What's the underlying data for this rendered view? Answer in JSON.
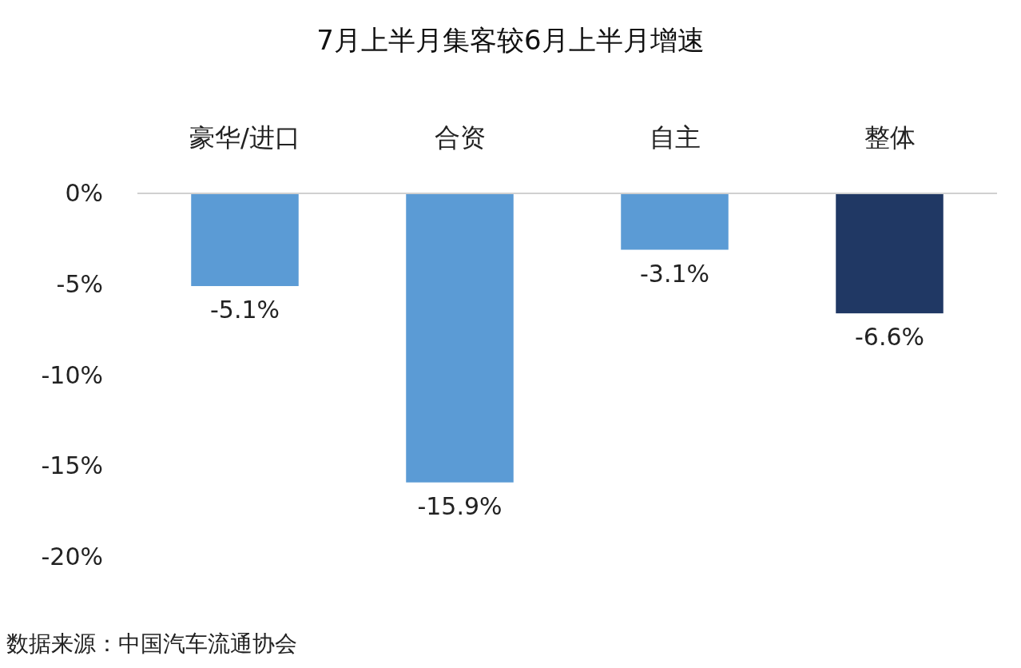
{
  "chart_data": {
    "type": "bar",
    "title": "7月上半月集客较6月上半月增速",
    "categories": [
      "豪华/进口",
      "合资",
      "自主",
      "整体"
    ],
    "values": [
      -5.1,
      -15.9,
      -3.1,
      -6.6
    ],
    "colors": [
      "#5b9bd5",
      "#5b9bd5",
      "#5b9bd5",
      "#203864"
    ],
    "value_labels": [
      "-5.1%",
      "-15.9%",
      "-3.1%",
      "-6.6%"
    ],
    "ylim": [
      -20,
      0
    ],
    "yticks": [
      {
        "value": 0,
        "label": "0%"
      },
      {
        "value": -5,
        "label": "-5%"
      },
      {
        "value": -10,
        "label": "-10%"
      },
      {
        "value": -15,
        "label": "-15%"
      },
      {
        "value": -20,
        "label": "-20%"
      }
    ],
    "grid": false,
    "annotations": [
      "数据来源：中国汽车流通协会"
    ]
  }
}
